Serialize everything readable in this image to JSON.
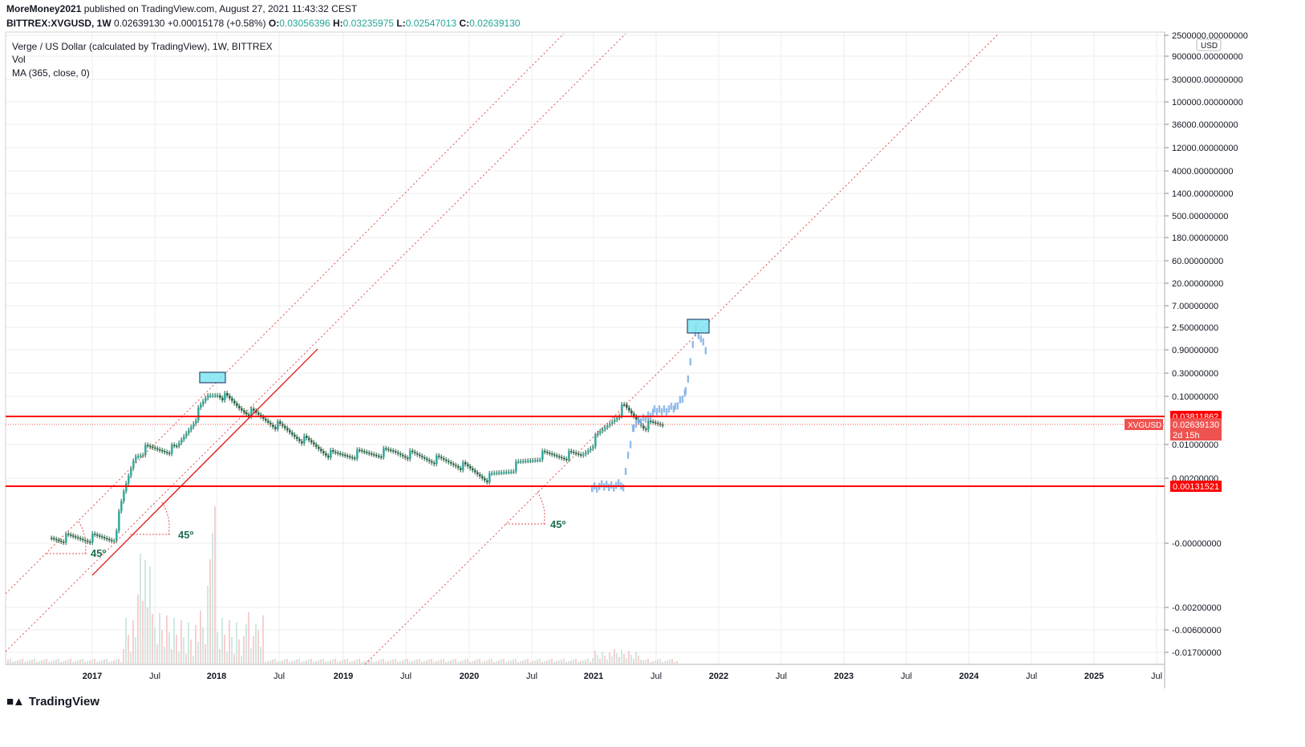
{
  "header": {
    "author": "MoreMoney2021",
    "published_text": "published on TradingView.com, August 27, 2021 11:43:32 CEST",
    "symbol": "BITTREX:XVGUSD, 1W",
    "last": "0.02639130",
    "change": "+0.00015178 (+0.58%)",
    "o_label": "O:",
    "o_value": "0.03056396",
    "h_label": "H:",
    "h_value": "0.03235975",
    "l_label": "L:",
    "l_value": "0.02547013",
    "c_label": "C:",
    "c_value": "0.02639130"
  },
  "legend": {
    "title": "Verge / US Dollar (calculated by TradingView), 1W, BITTREX",
    "vol": "Vol",
    "ma": "MA (365, close, 0)"
  },
  "footer": {
    "brand": "TradingView"
  },
  "colors": {
    "up": "#26a69a",
    "down": "#ef5350",
    "candle": "#1e5c3a",
    "hline": "#ff0000",
    "dotted": "#e05050",
    "projection": "#7fb0e6",
    "box_fill": "#7fe6f2",
    "annot": "#1e6e4e"
  },
  "chart_data": {
    "type": "candlestick",
    "currency": "USD",
    "scale": "log-style (custom)",
    "price_axis_labels": [
      "2500000.00000000",
      "900000.00000000",
      "300000.00000000",
      "100000.00000000",
      "36000.00000000",
      "12000.00000000",
      "4000.00000000",
      "1400.00000000",
      "500.00000000",
      "180.00000000",
      "60.00000000",
      "20.00000000",
      "7.00000000",
      "2.50000000",
      "0.90000000",
      "0.30000000",
      "0.10000000",
      "0.01000000",
      "0.00200000",
      "-0.00000000",
      "-0.00200000",
      "-0.00600000",
      "-0.01700000"
    ],
    "time_axis_labels": [
      "2017",
      "Jul",
      "2018",
      "Jul",
      "2019",
      "Jul",
      "2020",
      "Jul",
      "2021",
      "Jul",
      "2022",
      "Jul",
      "2023",
      "Jul",
      "2024",
      "Jul",
      "2025",
      "Jul"
    ],
    "horizontal_levels": [
      {
        "label": "0.03811862",
        "value": 0.03811862
      },
      {
        "label": "0.00131521",
        "value": 0.00131521
      }
    ],
    "last_price_tag": {
      "symbol": "XVGUSD",
      "price": "0.02639130",
      "countdown": "2d 15h"
    },
    "annotations": [
      "45º",
      "45º",
      "45º"
    ],
    "weekly_close_approx": [
      {
        "date": "2016-09",
        "close": 3e-05
      },
      {
        "date": "2017-03",
        "close": 3e-05
      },
      {
        "date": "2017-04",
        "close": 0.0008
      },
      {
        "date": "2017-05",
        "close": 0.006
      },
      {
        "date": "2017-06",
        "close": 0.008
      },
      {
        "date": "2017-09",
        "close": 0.008
      },
      {
        "date": "2017-12",
        "close": 0.1
      },
      {
        "date": "2018-01",
        "close": 0.12
      },
      {
        "date": "2018-03",
        "close": 0.06
      },
      {
        "date": "2018-06",
        "close": 0.03
      },
      {
        "date": "2018-12",
        "close": 0.006
      },
      {
        "date": "2019-06",
        "close": 0.007
      },
      {
        "date": "2019-12",
        "close": 0.004
      },
      {
        "date": "2020-03",
        "close": 0.002
      },
      {
        "date": "2020-08",
        "close": 0.006
      },
      {
        "date": "2020-12",
        "close": 0.006
      },
      {
        "date": "2021-04",
        "close": 0.06
      },
      {
        "date": "2021-06",
        "close": 0.025
      },
      {
        "date": "2021-08",
        "close": 0.0264
      }
    ],
    "projection": [
      {
        "date": "2021-01",
        "close": 0.0014
      },
      {
        "date": "2021-04",
        "close": 0.0016
      },
      {
        "date": "2021-05",
        "close": 0.03
      },
      {
        "date": "2021-07",
        "close": 0.06
      },
      {
        "date": "2021-09",
        "close": 0.07
      },
      {
        "date": "2021-10",
        "close": 0.15
      },
      {
        "date": "2021-11",
        "close": 3.0
      },
      {
        "date": "2021-12",
        "close": 1.0
      }
    ]
  }
}
